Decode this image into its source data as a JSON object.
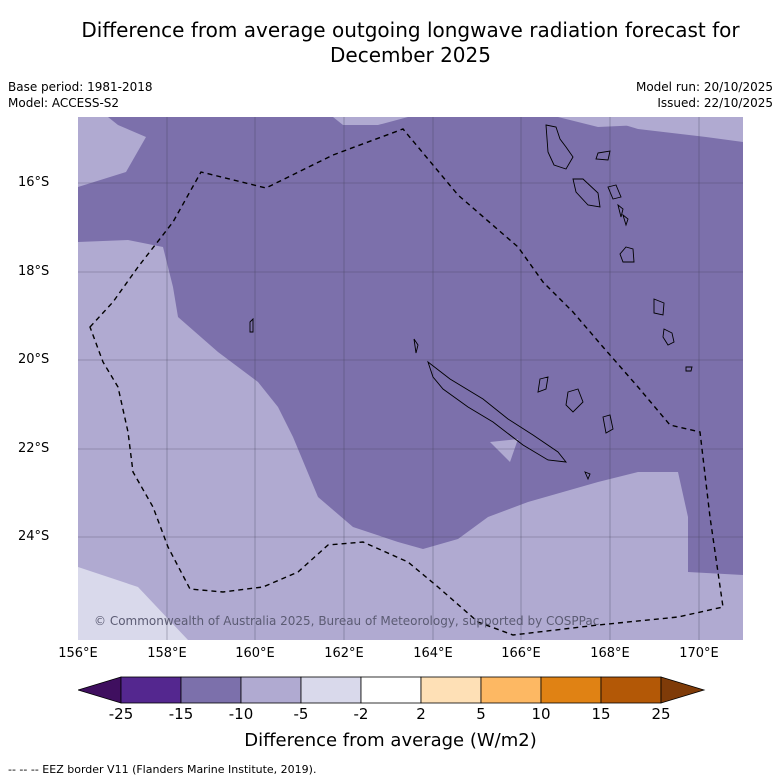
{
  "title": "Difference from average outgoing longwave radiation forecast for December 2025",
  "meta": {
    "base_period": "Base period: 1981-2018",
    "model": "Model: ACCESS-S2",
    "model_run": "Model run: 20/10/2025",
    "issued": "Issued: 22/10/2025"
  },
  "axes": {
    "lat_ticks": [
      "16°S",
      "18°S",
      "20°S",
      "22°S",
      "24°S"
    ],
    "lon_ticks": [
      "156°E",
      "158°E",
      "160°E",
      "162°E",
      "164°E",
      "166°E",
      "168°E",
      "170°E"
    ]
  },
  "copyright": "© Commonwealth of Australia 2025, Bureau of Meteorology, supported by COSPPac",
  "colorbar": {
    "labels": [
      "-25",
      "-15",
      "-10",
      "-5",
      "-2",
      "2",
      "5",
      "10",
      "15",
      "25"
    ],
    "colors": [
      "#3f0f5f",
      "#54278f",
      "#7c70ab",
      "#b0aad1",
      "#d9d9eb",
      "#ffffff",
      "#fee0b6",
      "#fdb863",
      "#e08214",
      "#b35806",
      "#7f3b08"
    ],
    "title": "Difference from average (W/m2)"
  },
  "footer": "-- -- -- EEZ border V11 (Flanders Marine Institute, 2019).",
  "map_layers": {
    "dark_band": "#7c70ab",
    "mid_band": "#b0aad1",
    "light_band": "#d9d9eb"
  }
}
